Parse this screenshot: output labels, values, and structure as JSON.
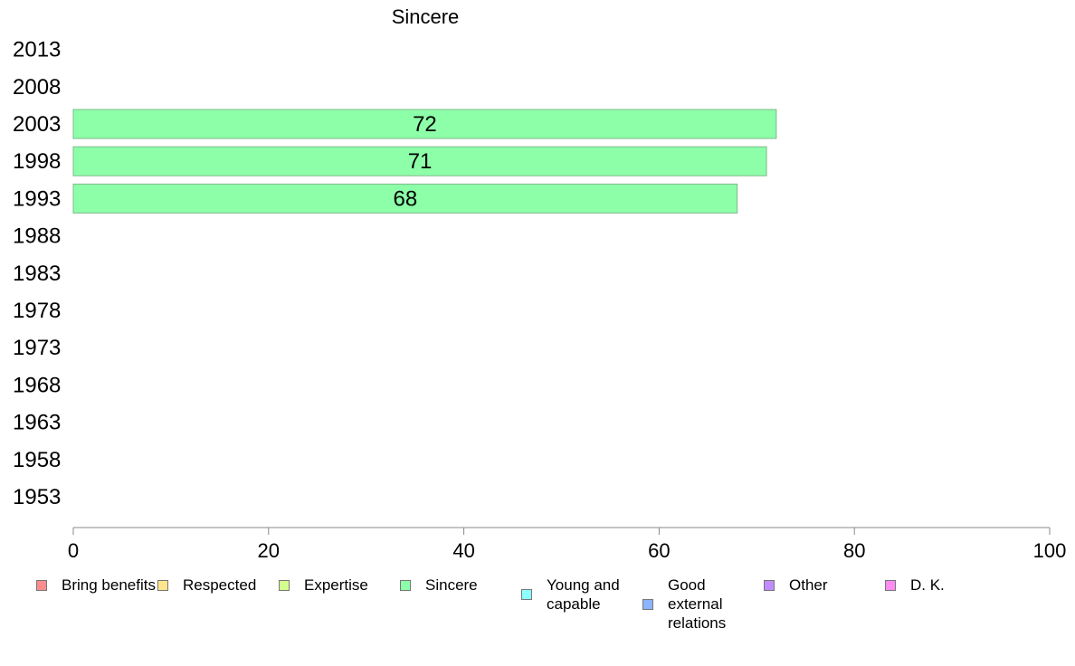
{
  "chart_data": {
    "type": "bar",
    "orientation": "horizontal",
    "title": "Sincere",
    "xlabel": "",
    "ylabel": "",
    "xlim": [
      0,
      100
    ],
    "x_ticks": [
      "0",
      "20",
      "40",
      "60",
      "80",
      "100"
    ],
    "categories": [
      "2013",
      "2008",
      "2003",
      "1998",
      "1993",
      "1988",
      "1983",
      "1978",
      "1973",
      "1968",
      "1963",
      "1958",
      "1953"
    ],
    "series": [
      {
        "name": "Sincere",
        "color": "#8cffa8",
        "values": [
          null,
          null,
          72,
          71,
          68,
          null,
          null,
          null,
          null,
          null,
          null,
          null,
          null
        ],
        "labels": [
          "",
          "",
          "72",
          "71",
          "68",
          "",
          "",
          "",
          "",
          "",
          "",
          "",
          ""
        ]
      }
    ],
    "grid": false,
    "legend_position": "bottom",
    "legend": [
      {
        "label": "Bring benefits",
        "color": "#ff8c8c"
      },
      {
        "label": "Respected",
        "color": "#ffe68c"
      },
      {
        "label": "Expertise",
        "color": "#d4ff8c"
      },
      {
        "label": "Sincere",
        "color": "#8cffa8"
      },
      {
        "label": "Young and capable",
        "color": "#8cffff"
      },
      {
        "label": "Good external relations",
        "color": "#8cb4ff"
      },
      {
        "label": "Other",
        "color": "#c08cff"
      },
      {
        "label": "D. K.",
        "color": "#ff8cf0"
      }
    ]
  }
}
